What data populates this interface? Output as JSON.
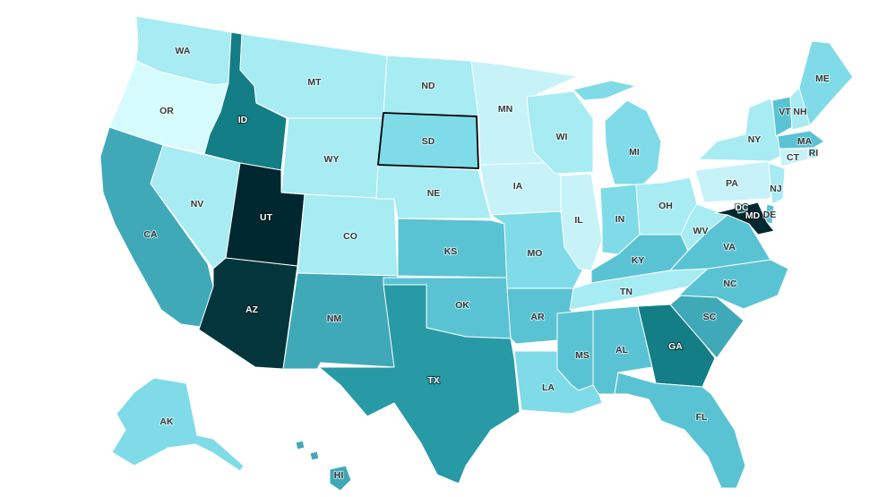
{
  "map": {
    "selected_state": "SD",
    "shade_colors": [
      "#d6fbfc",
      "#c7f3f8",
      "#a7ebf3",
      "#7fdbe8",
      "#5ac3d3",
      "#3fa9b8",
      "#279aa6",
      "#137e86",
      "#076b70",
      "#02363c",
      "#002830"
    ],
    "states": [
      {
        "abbr": "WA",
        "shade": 2
      },
      {
        "abbr": "OR",
        "shade": 0
      },
      {
        "abbr": "CA",
        "shade": 5
      },
      {
        "abbr": "NV",
        "shade": 2
      },
      {
        "abbr": "ID",
        "shade": 7
      },
      {
        "abbr": "MT",
        "shade": 2
      },
      {
        "abbr": "WY",
        "shade": 2
      },
      {
        "abbr": "UT",
        "shade": 10
      },
      {
        "abbr": "AZ",
        "shade": 9
      },
      {
        "abbr": "CO",
        "shade": 2
      },
      {
        "abbr": "NM",
        "shade": 5
      },
      {
        "abbr": "ND",
        "shade": 2
      },
      {
        "abbr": "SD",
        "shade": 3
      },
      {
        "abbr": "NE",
        "shade": 2
      },
      {
        "abbr": "KS",
        "shade": 4
      },
      {
        "abbr": "OK",
        "shade": 4
      },
      {
        "abbr": "TX",
        "shade": 6
      },
      {
        "abbr": "MN",
        "shade": 1
      },
      {
        "abbr": "IA",
        "shade": 1
      },
      {
        "abbr": "MO",
        "shade": 3
      },
      {
        "abbr": "AR",
        "shade": 4
      },
      {
        "abbr": "LA",
        "shade": 3
      },
      {
        "abbr": "WI",
        "shade": 2
      },
      {
        "abbr": "IL",
        "shade": 1
      },
      {
        "abbr": "MI",
        "shade": 3
      },
      {
        "abbr": "IN",
        "shade": 3
      },
      {
        "abbr": "OH",
        "shade": 2
      },
      {
        "abbr": "KY",
        "shade": 4
      },
      {
        "abbr": "TN",
        "shade": 2
      },
      {
        "abbr": "MS",
        "shade": 4
      },
      {
        "abbr": "AL",
        "shade": 4
      },
      {
        "abbr": "GA",
        "shade": 7
      },
      {
        "abbr": "FL",
        "shade": 4
      },
      {
        "abbr": "SC",
        "shade": 5
      },
      {
        "abbr": "NC",
        "shade": 4
      },
      {
        "abbr": "VA",
        "shade": 4
      },
      {
        "abbr": "WV",
        "shade": 2
      },
      {
        "abbr": "PA",
        "shade": 1
      },
      {
        "abbr": "NY",
        "shade": 2
      },
      {
        "abbr": "VT",
        "shade": 4
      },
      {
        "abbr": "NH",
        "shade": 2
      },
      {
        "abbr": "ME",
        "shade": 3
      },
      {
        "abbr": "MA",
        "shade": 4
      },
      {
        "abbr": "RI",
        "shade": 3
      },
      {
        "abbr": "CT",
        "shade": 1
      },
      {
        "abbr": "NJ",
        "shade": 2
      },
      {
        "abbr": "DE",
        "shade": 4
      },
      {
        "abbr": "MD",
        "shade": 10
      },
      {
        "abbr": "DC",
        "shade": 8
      },
      {
        "abbr": "AK",
        "shade": 3
      },
      {
        "abbr": "HI",
        "shade": 5
      }
    ]
  }
}
